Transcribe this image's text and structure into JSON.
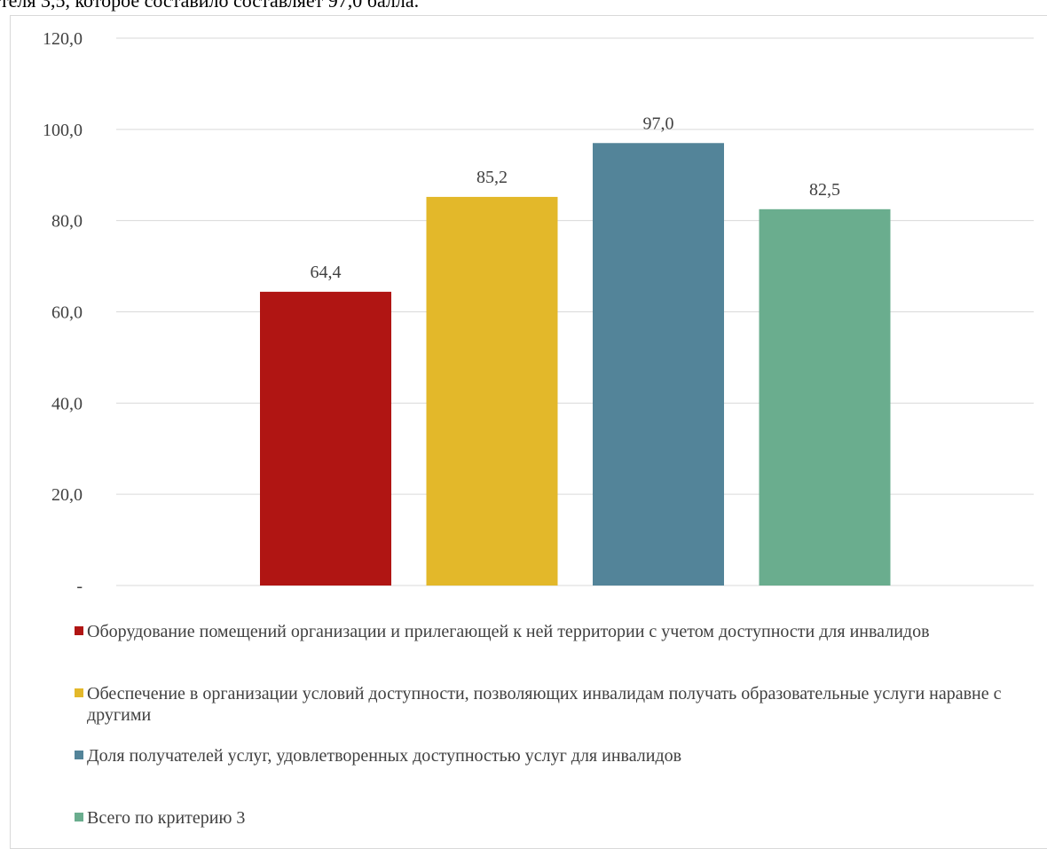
{
  "page": {
    "top_text": "теля 3,5, которое составило  составляет 97,0 балла."
  },
  "chart_data": {
    "type": "bar",
    "categories": [
      "Оборудование помещений организации и прилегающей к ней территории с учетом доступности для инвалидов",
      "Обеспечение в организации условий доступности, позволяющих инвалидам получать образовательные услуги наравне с другими",
      "Доля получателей услуг, удовлетворенных доступностью услуг для инвалидов",
      "Всего по критерию 3"
    ],
    "values": [
      64.4,
      85.2,
      97.0,
      82.5
    ],
    "value_labels": [
      "64,4",
      "85,2",
      "97,0",
      "82,5"
    ],
    "colors": [
      "#b01513",
      "#e3b82a",
      "#538499",
      "#6aad8e"
    ],
    "ylim": [
      0,
      120
    ],
    "yticks": [
      0,
      20,
      40,
      60,
      80,
      100,
      120
    ],
    "ytick_labels": [
      "-",
      "20,0",
      "40,0",
      "60,0",
      "80,0",
      "100,0",
      "120,0"
    ],
    "grid": true,
    "legend_position": "bottom",
    "title": "",
    "xlabel": "",
    "ylabel": ""
  }
}
